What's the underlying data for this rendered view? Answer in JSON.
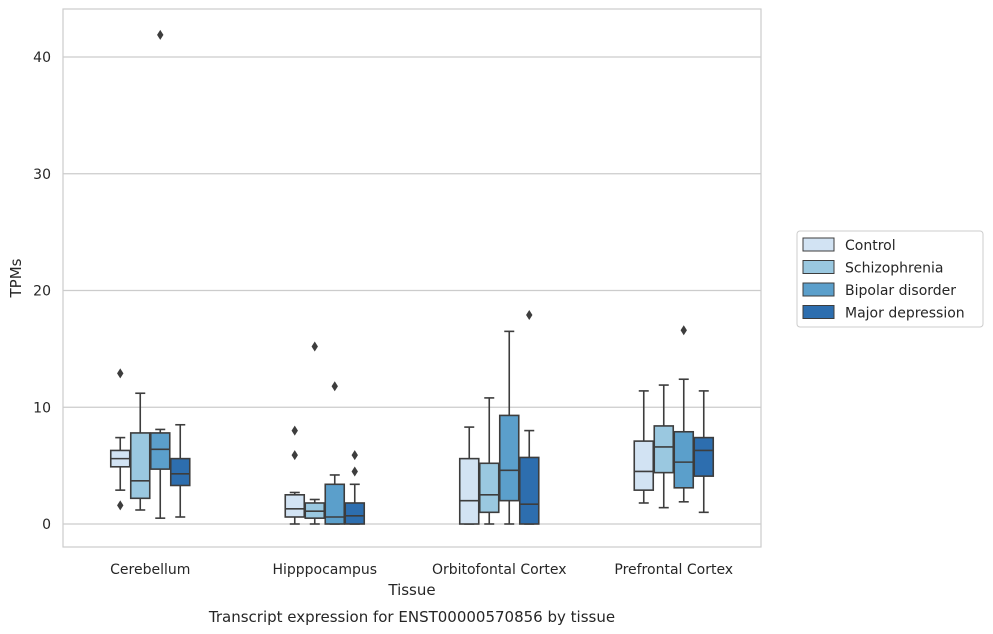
{
  "chart_data": {
    "type": "box",
    "title": "",
    "caption": "Transcript expression for ENST00000570856 by tissue",
    "xlabel": "Tissue",
    "ylabel": "TPMs",
    "ylim": [
      -2,
      44
    ],
    "yticks": [
      0,
      10,
      20,
      30,
      40
    ],
    "grid": "horizontal",
    "legend_position": "right",
    "categories": [
      "Cerebellum",
      "Hipppocampus",
      "Orbitofontal Cortex",
      "Prefrontal Cortex"
    ],
    "series": [
      {
        "name": "Control",
        "color": "#d2e3f3",
        "boxes": [
          {
            "whislo": 2.9,
            "q1": 4.9,
            "med": 5.6,
            "q3": 6.3,
            "whishi": 7.4,
            "fliers": [
              12.9,
              1.6
            ]
          },
          {
            "whislo": 0.0,
            "q1": 0.6,
            "med": 1.3,
            "q3": 2.5,
            "whishi": 2.7,
            "fliers": [
              8.0,
              5.9
            ]
          },
          {
            "whislo": 0.0,
            "q1": 0.0,
            "med": 2.0,
            "q3": 5.6,
            "whishi": 8.3,
            "fliers": []
          },
          {
            "whislo": 1.8,
            "q1": 2.9,
            "med": 4.5,
            "q3": 7.1,
            "whishi": 11.4,
            "fliers": []
          }
        ]
      },
      {
        "name": "Schizophrenia",
        "color": "#9ac8e0",
        "boxes": [
          {
            "whislo": 1.2,
            "q1": 2.2,
            "med": 3.7,
            "q3": 7.8,
            "whishi": 11.2,
            "fliers": []
          },
          {
            "whislo": 0.0,
            "q1": 0.5,
            "med": 1.1,
            "q3": 1.8,
            "whishi": 2.1,
            "fliers": [
              15.2
            ]
          },
          {
            "whislo": 0.0,
            "q1": 1.0,
            "med": 2.5,
            "q3": 5.2,
            "whishi": 10.8,
            "fliers": []
          },
          {
            "whislo": 1.4,
            "q1": 4.4,
            "med": 6.6,
            "q3": 8.4,
            "whishi": 11.9,
            "fliers": []
          }
        ]
      },
      {
        "name": "Bipolar disorder",
        "color": "#5b9fcb",
        "boxes": [
          {
            "whislo": 0.5,
            "q1": 4.7,
            "med": 6.4,
            "q3": 7.8,
            "whishi": 8.1,
            "fliers": [
              41.9
            ]
          },
          {
            "whislo": 0.0,
            "q1": 0.0,
            "med": 0.6,
            "q3": 3.4,
            "whishi": 4.2,
            "fliers": [
              11.8
            ]
          },
          {
            "whislo": 0.0,
            "q1": 2.0,
            "med": 4.6,
            "q3": 9.3,
            "whishi": 16.5,
            "fliers": []
          },
          {
            "whislo": 1.9,
            "q1": 3.1,
            "med": 5.3,
            "q3": 7.9,
            "whishi": 12.4,
            "fliers": [
              16.6
            ]
          }
        ]
      },
      {
        "name": "Major depression",
        "color": "#2d6eaf",
        "boxes": [
          {
            "whislo": 0.6,
            "q1": 3.3,
            "med": 4.3,
            "q3": 5.6,
            "whishi": 8.5,
            "fliers": []
          },
          {
            "whislo": 0.0,
            "q1": 0.0,
            "med": 0.7,
            "q3": 1.8,
            "whishi": 3.4,
            "fliers": [
              5.9,
              4.5
            ]
          },
          {
            "whislo": 0.0,
            "q1": 0.0,
            "med": 1.7,
            "q3": 5.7,
            "whishi": 8.0,
            "fliers": [
              17.9
            ]
          },
          {
            "whislo": 1.0,
            "q1": 4.1,
            "med": 6.3,
            "q3": 7.4,
            "whishi": 11.4,
            "fliers": []
          }
        ]
      }
    ]
  }
}
